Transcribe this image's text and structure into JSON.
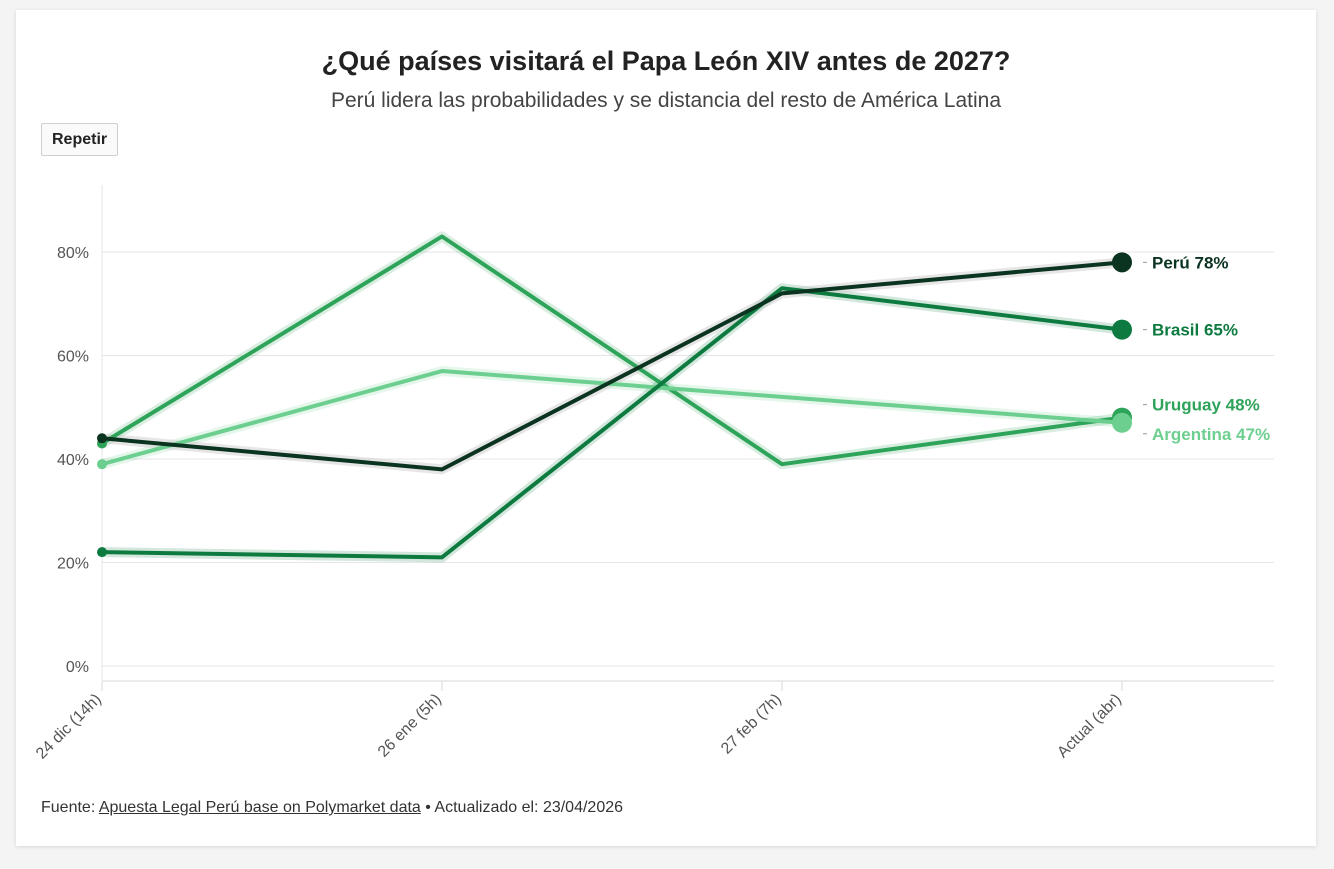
{
  "header": {
    "title": "¿Qué países visitará el Papa León XIV antes de 2027?",
    "subtitle": "Perú lidera las probabilidades y se distancia del resto de América Latina"
  },
  "controls": {
    "replay_label": "Repetir"
  },
  "footer": {
    "source_prefix": "Fuente:",
    "source_link": "Apuesta Legal Perú base on Polymarket data",
    "updated": "• Actualizado el: 23/04/2026"
  },
  "colors": {
    "peru": "#0a3320",
    "brasil": "#0d7a40",
    "uruguay": "#2ea35a",
    "argentina": "#6dcf8f",
    "grid": "#e6e6e6",
    "axis_text": "#555555"
  },
  "chart_data": {
    "type": "line",
    "categories": [
      "24 dic (14h)",
      "26 ene (5h)",
      "27 feb (7h)",
      "Actual (abr)"
    ],
    "ylim": [
      0,
      90
    ],
    "yticks": [
      0,
      20,
      40,
      60,
      80
    ],
    "ytick_labels": [
      "0%",
      "20%",
      "40%",
      "60%",
      "80%"
    ],
    "grid": true,
    "legend": "end-labels",
    "series": [
      {
        "name": "Perú",
        "values": [
          44,
          38,
          72,
          78
        ],
        "end_label": "Perú 78%",
        "color": "#0a3320"
      },
      {
        "name": "Brasil",
        "values": [
          22,
          21,
          73,
          65
        ],
        "end_label": "Brasil 65%",
        "color": "#0d7a40"
      },
      {
        "name": "Uruguay",
        "values": [
          43,
          83,
          39,
          48
        ],
        "end_label": "Uruguay 48%",
        "color": "#2ea35a"
      },
      {
        "name": "Argentina",
        "values": [
          39,
          57,
          52,
          47
        ],
        "end_label": "Argentina 47%",
        "color": "#6dcf8f"
      }
    ]
  }
}
